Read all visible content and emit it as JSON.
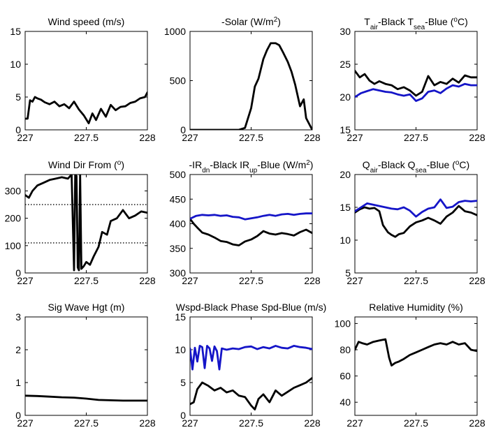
{
  "figure": {
    "colors": {
      "black": "#000000",
      "blue": "#1515c8",
      "axis": "#000000"
    }
  },
  "chart_data": [
    {
      "type": "line",
      "title": "Wind speed (m/s)",
      "xlim": [
        227,
        228
      ],
      "ylim": [
        0,
        15
      ],
      "xticks": [
        "227",
        "227.5",
        "228"
      ],
      "xtick_values": [
        227,
        227.5,
        228
      ],
      "yticks": [
        "0",
        "5",
        "10",
        "15"
      ],
      "ytick_values": [
        0,
        5,
        10,
        15
      ],
      "series": [
        {
          "color": "#000000",
          "x": [
            227,
            227.02,
            227.04,
            227.06,
            227.08,
            227.1,
            227.13,
            227.16,
            227.2,
            227.24,
            227.28,
            227.32,
            227.36,
            227.4,
            227.44,
            227.48,
            227.52,
            227.55,
            227.58,
            227.62,
            227.66,
            227.7,
            227.74,
            227.78,
            227.82,
            227.86,
            227.9,
            227.94,
            227.98,
            228
          ],
          "y": [
            1.7,
            1.7,
            4.5,
            4.3,
            5.0,
            4.8,
            4.6,
            4.2,
            3.9,
            4.3,
            3.6,
            3.9,
            3.3,
            4.3,
            3.1,
            2.2,
            1.0,
            2.5,
            1.5,
            3.2,
            2.0,
            3.8,
            3.0,
            3.5,
            3.6,
            4.1,
            4.3,
            4.8,
            5.0,
            5.7
          ]
        }
      ]
    },
    {
      "type": "line",
      "title": "-Solar (W/m²)",
      "xlim": [
        227,
        228
      ],
      "ylim": [
        0,
        1000
      ],
      "xticks": [
        "227",
        "227.5",
        "228"
      ],
      "xtick_values": [
        227,
        227.5,
        228
      ],
      "yticks": [
        "0",
        "500",
        "1000"
      ],
      "ytick_values": [
        0,
        500,
        1000
      ],
      "series": [
        {
          "color": "#000000",
          "x": [
            227,
            227.1,
            227.2,
            227.3,
            227.4,
            227.45,
            227.5,
            227.53,
            227.56,
            227.6,
            227.63,
            227.66,
            227.7,
            227.73,
            227.76,
            227.8,
            227.83,
            227.86,
            227.9,
            227.93,
            227.95,
            228
          ],
          "y": [
            0,
            0,
            0,
            0,
            0,
            20,
            220,
            440,
            520,
            720,
            810,
            880,
            880,
            860,
            790,
            690,
            590,
            460,
            240,
            310,
            120,
            0
          ]
        }
      ]
    },
    {
      "type": "line",
      "title": "Tair-Black  Tsea-Blue (°C)",
      "xlim": [
        227,
        228
      ],
      "ylim": [
        15,
        30
      ],
      "xticks": [
        "227",
        "227.5",
        "228"
      ],
      "xtick_values": [
        227,
        227.5,
        228
      ],
      "yticks": [
        "15",
        "20",
        "25",
        "30"
      ],
      "ytick_values": [
        15,
        20,
        25,
        30
      ],
      "series": [
        {
          "color": "#000000",
          "x": [
            227,
            227.04,
            227.08,
            227.12,
            227.16,
            227.2,
            227.25,
            227.3,
            227.35,
            227.4,
            227.45,
            227.5,
            227.55,
            227.6,
            227.65,
            227.7,
            227.75,
            227.8,
            227.85,
            227.9,
            227.95,
            228
          ],
          "y": [
            24.0,
            23.0,
            23.5,
            22.5,
            22.0,
            22.4,
            22.0,
            21.8,
            21.2,
            21.5,
            21.0,
            20.2,
            20.8,
            23.2,
            21.8,
            22.3,
            22.0,
            22.8,
            22.2,
            23.3,
            23.0,
            23.0
          ]
        },
        {
          "color": "#1515c8",
          "x": [
            227,
            227.05,
            227.1,
            227.15,
            227.2,
            227.25,
            227.3,
            227.35,
            227.4,
            227.45,
            227.5,
            227.55,
            227.6,
            227.65,
            227.7,
            227.75,
            227.8,
            227.85,
            227.9,
            227.95,
            228
          ],
          "y": [
            20.0,
            20.6,
            20.9,
            21.2,
            21.0,
            20.8,
            20.7,
            20.4,
            20.2,
            20.4,
            19.4,
            19.8,
            20.8,
            21.0,
            20.6,
            21.3,
            21.8,
            21.6,
            22.0,
            21.8,
            21.8
          ]
        }
      ]
    },
    {
      "type": "line",
      "title": "Wind Dir From (°)",
      "xlim": [
        227,
        228
      ],
      "ylim": [
        0,
        360
      ],
      "xticks": [
        "227",
        "227.5",
        "228"
      ],
      "xtick_values": [
        227,
        227.5,
        228
      ],
      "yticks": [
        "0",
        "100",
        "200",
        "300"
      ],
      "ytick_values": [
        0,
        100,
        200,
        300
      ],
      "reference_lines": [
        250,
        110
      ],
      "series": [
        {
          "color": "#000000",
          "x": [
            227,
            227.03,
            227.06,
            227.1,
            227.15,
            227.2,
            227.25,
            227.3,
            227.35,
            227.38,
            227.4,
            227.41,
            227.42,
            227.43,
            227.44,
            227.45,
            227.46,
            227.47,
            227.48,
            227.5,
            227.53,
            227.56,
            227.6,
            227.63,
            227.67,
            227.7,
            227.75,
            227.8,
            227.85,
            227.9,
            227.95,
            228
          ],
          "y": [
            285,
            275,
            300,
            320,
            330,
            340,
            345,
            350,
            345,
            360,
            10,
            360,
            355,
            20,
            10,
            360,
            15,
            20,
            25,
            40,
            30,
            60,
            95,
            150,
            140,
            190,
            200,
            230,
            200,
            210,
            225,
            220
          ]
        }
      ]
    },
    {
      "type": "line",
      "title": "-IRdn-Black  IRup-Blue (W/m²)",
      "xlim": [
        227,
        228
      ],
      "ylim": [
        300,
        500
      ],
      "xticks": [
        "227",
        "227.5",
        "228"
      ],
      "xtick_values": [
        227,
        227.5,
        228
      ],
      "yticks": [
        "300",
        "350",
        "400",
        "450",
        "500"
      ],
      "ytick_values": [
        300,
        350,
        400,
        450,
        500
      ],
      "series": [
        {
          "color": "#000000",
          "x": [
            227,
            227.03,
            227.06,
            227.1,
            227.15,
            227.2,
            227.25,
            227.3,
            227.35,
            227.4,
            227.45,
            227.5,
            227.55,
            227.6,
            227.65,
            227.7,
            227.75,
            227.8,
            227.85,
            227.9,
            227.95,
            228
          ],
          "y": [
            410,
            400,
            392,
            382,
            378,
            372,
            365,
            363,
            358,
            356,
            364,
            368,
            375,
            385,
            380,
            378,
            381,
            379,
            376,
            383,
            388,
            381
          ]
        },
        {
          "color": "#1515c8",
          "x": [
            227,
            227.05,
            227.1,
            227.15,
            227.2,
            227.25,
            227.3,
            227.35,
            227.4,
            227.45,
            227.5,
            227.55,
            227.6,
            227.65,
            227.7,
            227.75,
            227.8,
            227.85,
            227.9,
            227.95,
            228
          ],
          "y": [
            410,
            416,
            418,
            417,
            418,
            416,
            417,
            414,
            413,
            409,
            411,
            413,
            416,
            418,
            416,
            419,
            420,
            418,
            420,
            421,
            421
          ]
        }
      ]
    },
    {
      "type": "line",
      "title": "Qair-Black  Qsea-Blue (°C)",
      "xlim": [
        227,
        228
      ],
      "ylim": [
        5,
        20
      ],
      "xticks": [
        "227",
        "227.5",
        "228"
      ],
      "xtick_values": [
        227,
        227.5,
        228
      ],
      "yticks": [
        "5",
        "10",
        "15",
        "20"
      ],
      "ytick_values": [
        5,
        10,
        15,
        20
      ],
      "series": [
        {
          "color": "#000000",
          "x": [
            227,
            227.04,
            227.08,
            227.12,
            227.16,
            227.2,
            227.23,
            227.27,
            227.3,
            227.33,
            227.36,
            227.4,
            227.45,
            227.5,
            227.55,
            227.6,
            227.65,
            227.7,
            227.75,
            227.8,
            227.85,
            227.9,
            227.95,
            228
          ],
          "y": [
            14.2,
            14.7,
            15.0,
            14.8,
            14.9,
            14.4,
            12.3,
            11.2,
            10.8,
            10.5,
            10.9,
            11.1,
            12.1,
            12.7,
            13.0,
            13.4,
            13.0,
            12.5,
            13.6,
            14.2,
            15.2,
            14.4,
            14.2,
            13.8
          ]
        },
        {
          "color": "#1515c8",
          "x": [
            227,
            227.05,
            227.1,
            227.15,
            227.2,
            227.25,
            227.3,
            227.35,
            227.4,
            227.45,
            227.5,
            227.55,
            227.6,
            227.65,
            227.7,
            227.75,
            227.8,
            227.85,
            227.9,
            227.95,
            228
          ],
          "y": [
            14.4,
            15.0,
            15.6,
            15.4,
            15.2,
            15.0,
            14.8,
            14.7,
            15.0,
            14.5,
            13.6,
            14.3,
            14.8,
            15.0,
            16.2,
            14.9,
            15.1,
            15.8,
            16.0,
            15.9,
            16.0
          ]
        }
      ]
    },
    {
      "type": "line",
      "title": "Sig Wave Hgt (m)",
      "xlim": [
        227,
        228
      ],
      "ylim": [
        0,
        3
      ],
      "xticks": [
        "227",
        "227.5",
        "228"
      ],
      "xtick_values": [
        227,
        227.5,
        228
      ],
      "yticks": [
        "0",
        "1",
        "2",
        "3"
      ],
      "ytick_values": [
        0,
        1,
        2,
        3
      ],
      "series": [
        {
          "color": "#000000",
          "x": [
            227,
            227.1,
            227.2,
            227.3,
            227.4,
            227.5,
            227.6,
            227.7,
            227.8,
            227.9,
            228
          ],
          "y": [
            0.6,
            0.59,
            0.57,
            0.55,
            0.54,
            0.51,
            0.47,
            0.46,
            0.45,
            0.45,
            0.45
          ]
        }
      ]
    },
    {
      "type": "line",
      "title": "Wspd-Black  Phase Spd-Blue (m/s)",
      "xlim": [
        227,
        228
      ],
      "ylim": [
        0,
        15
      ],
      "xticks": [
        "227",
        "227.5",
        "228"
      ],
      "xtick_values": [
        227,
        227.5,
        228
      ],
      "yticks": [
        "0",
        "5",
        "10",
        "15"
      ],
      "ytick_values": [
        0,
        5,
        10,
        15
      ],
      "series": [
        {
          "color": "#000000",
          "x": [
            227,
            227.03,
            227.06,
            227.1,
            227.15,
            227.2,
            227.25,
            227.3,
            227.35,
            227.4,
            227.45,
            227.5,
            227.53,
            227.56,
            227.6,
            227.65,
            227.7,
            227.75,
            227.8,
            227.85,
            227.9,
            227.95,
            228
          ],
          "y": [
            1.7,
            2.0,
            4.0,
            5.0,
            4.5,
            3.8,
            4.2,
            3.5,
            3.8,
            3.0,
            2.8,
            1.5,
            0.9,
            2.5,
            3.2,
            2.0,
            3.8,
            3.0,
            3.6,
            4.2,
            4.6,
            5.0,
            5.7
          ]
        },
        {
          "color": "#1515c8",
          "x": [
            227,
            227.02,
            227.04,
            227.06,
            227.08,
            227.1,
            227.12,
            227.14,
            227.16,
            227.18,
            227.2,
            227.22,
            227.24,
            227.26,
            227.28,
            227.3,
            227.35,
            227.4,
            227.45,
            227.5,
            227.55,
            227.6,
            227.65,
            227.7,
            227.75,
            227.8,
            227.85,
            227.9,
            227.95,
            228
          ],
          "y": [
            10.2,
            7.0,
            10.3,
            8.2,
            10.6,
            10.4,
            7.2,
            10.6,
            10.2,
            8.3,
            10.5,
            9.8,
            7.0,
            10.2,
            10.1,
            10.0,
            10.2,
            10.1,
            10.4,
            10.5,
            10.1,
            10.4,
            10.2,
            10.6,
            10.3,
            10.2,
            10.6,
            10.4,
            10.3,
            10.1
          ]
        }
      ]
    },
    {
      "type": "line",
      "title": "Relative Humidity (%)",
      "xlim": [
        227,
        228
      ],
      "ylim": [
        30,
        105
      ],
      "xticks": [
        "227",
        "227.5",
        "228"
      ],
      "xtick_values": [
        227,
        227.5,
        228
      ],
      "yticks": [
        "40",
        "60",
        "80",
        "100"
      ],
      "ytick_values": [
        40,
        60,
        80,
        100
      ],
      "series": [
        {
          "color": "#000000",
          "x": [
            227,
            227.03,
            227.06,
            227.1,
            227.15,
            227.2,
            227.25,
            227.28,
            227.3,
            227.33,
            227.36,
            227.4,
            227.45,
            227.5,
            227.55,
            227.6,
            227.65,
            227.7,
            227.75,
            227.8,
            227.85,
            227.9,
            227.95,
            228
          ],
          "y": [
            80,
            86,
            85,
            84,
            86,
            87,
            88,
            74,
            68,
            70,
            71,
            73,
            76,
            78,
            80,
            82,
            84,
            85,
            84,
            86,
            84,
            85,
            80,
            79
          ]
        }
      ]
    }
  ]
}
